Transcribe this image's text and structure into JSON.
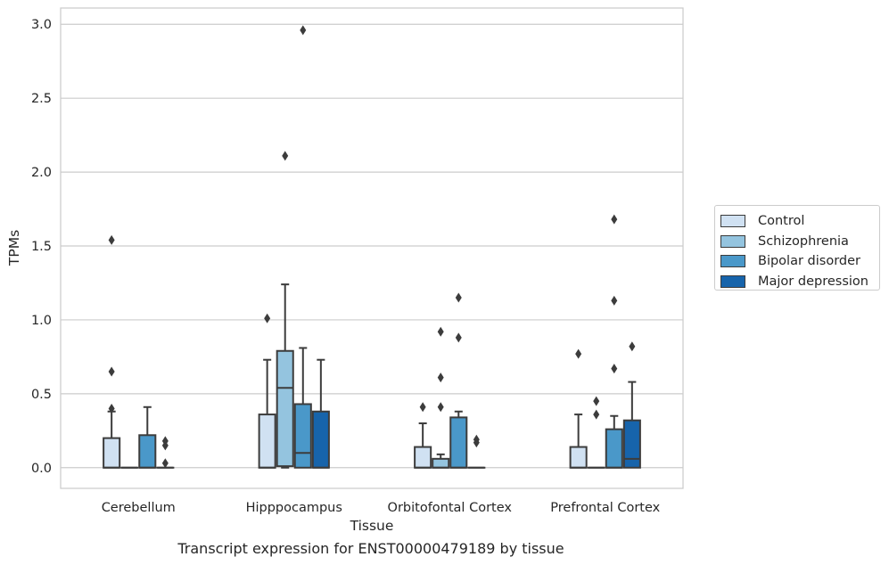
{
  "caption": "Transcript expression for ENST00000479189 by tissue",
  "chart_data": {
    "type": "boxplot",
    "title": "",
    "xlabel": "Tissue",
    "ylabel": "TPMs",
    "ylim": [
      -0.14,
      3.11
    ],
    "yticks": [
      "0.0",
      "0.5",
      "1.0",
      "1.5",
      "2.0",
      "2.5",
      "3.0"
    ],
    "grid": "horizontal",
    "legend_position": "right",
    "categories": [
      "Cerebellum",
      "Hipppocampus",
      "Orbitofontal Cortex",
      "Prefrontal Cortex"
    ],
    "series": [
      {
        "name": "Control",
        "color": "#d0e1f2",
        "boxes": [
          {
            "q1": 0.0,
            "median": 0.0,
            "q3": 0.2,
            "whisker_low": 0.0,
            "whisker_high": 0.38,
            "outliers": [
              0.4,
              0.65,
              1.54
            ]
          },
          {
            "q1": 0.0,
            "median": 0.0,
            "q3": 0.36,
            "whisker_low": 0.0,
            "whisker_high": 0.73,
            "outliers": [
              1.01
            ]
          },
          {
            "q1": 0.0,
            "median": 0.0,
            "q3": 0.14,
            "whisker_low": 0.0,
            "whisker_high": 0.3,
            "outliers": [
              0.41
            ]
          },
          {
            "q1": 0.0,
            "median": 0.0,
            "q3": 0.14,
            "whisker_low": 0.0,
            "whisker_high": 0.36,
            "outliers": [
              0.77
            ]
          }
        ]
      },
      {
        "name": "Schizophrenia",
        "color": "#94c4df",
        "boxes": [
          {
            "q1": 0.0,
            "median": 0.0,
            "q3": 0.0,
            "whisker_low": 0.0,
            "whisker_high": 0.0,
            "outliers": []
          },
          {
            "q1": 0.01,
            "median": 0.54,
            "q3": 0.79,
            "whisker_low": 0.0,
            "whisker_high": 1.24,
            "outliers": [
              2.11
            ]
          },
          {
            "q1": 0.0,
            "median": 0.0,
            "q3": 0.06,
            "whisker_low": 0.0,
            "whisker_high": 0.09,
            "outliers": [
              0.41,
              0.61,
              0.92
            ]
          },
          {
            "q1": 0.0,
            "median": 0.0,
            "q3": 0.0,
            "whisker_low": 0.0,
            "whisker_high": 0.0,
            "outliers": [
              0.36,
              0.45
            ]
          }
        ]
      },
      {
        "name": "Bipolar disorder",
        "color": "#4a98c9",
        "boxes": [
          {
            "q1": 0.0,
            "median": 0.0,
            "q3": 0.22,
            "whisker_low": 0.0,
            "whisker_high": 0.41,
            "outliers": []
          },
          {
            "q1": 0.0,
            "median": 0.1,
            "q3": 0.43,
            "whisker_low": 0.0,
            "whisker_high": 0.81,
            "outliers": [
              2.96
            ]
          },
          {
            "q1": 0.0,
            "median": 0.0,
            "q3": 0.34,
            "whisker_low": 0.0,
            "whisker_high": 0.38,
            "outliers": [
              0.88,
              1.15
            ]
          },
          {
            "q1": 0.0,
            "median": 0.0,
            "q3": 0.26,
            "whisker_low": 0.0,
            "whisker_high": 0.35,
            "outliers": [
              0.67,
              1.13,
              1.68
            ]
          }
        ]
      },
      {
        "name": "Major depression",
        "color": "#1764ab",
        "boxes": [
          {
            "q1": 0.0,
            "median": 0.0,
            "q3": 0.0,
            "whisker_low": 0.0,
            "whisker_high": 0.0,
            "outliers": [
              0.03,
              0.15,
              0.18
            ]
          },
          {
            "q1": 0.0,
            "median": 0.0,
            "q3": 0.38,
            "whisker_low": 0.0,
            "whisker_high": 0.73,
            "outliers": []
          },
          {
            "q1": 0.0,
            "median": 0.0,
            "q3": 0.0,
            "whisker_low": 0.0,
            "whisker_high": 0.0,
            "outliers": [
              0.17,
              0.19
            ]
          },
          {
            "q1": 0.0,
            "median": 0.06,
            "q3": 0.32,
            "whisker_low": 0.0,
            "whisker_high": 0.58,
            "outliers": [
              0.82
            ]
          }
        ]
      }
    ]
  }
}
